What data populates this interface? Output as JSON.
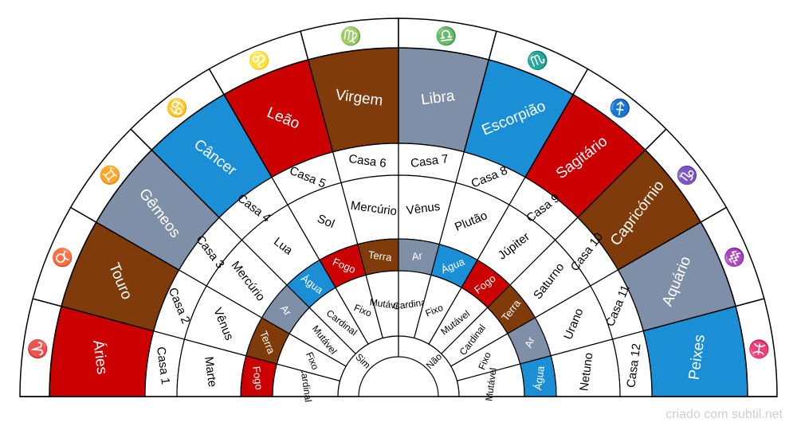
{
  "colors": {
    "Fogo": "#cc0000",
    "Terra": "#7f3b0a",
    "Ar": "#7f8fa8",
    "Água": "#1a8fd6",
    "plain": "#ffffff",
    "line": "#000000"
  },
  "segments": [
    {
      "sign": "Áries",
      "symbol": "♈",
      "house": "Casa 1",
      "planet": "Marte",
      "element": "Fogo",
      "elementKey": "Fogo",
      "quality": "Cardinal"
    },
    {
      "sign": "Touro",
      "symbol": "♉",
      "house": "Casa 2",
      "planet": "Vênus",
      "element": "Terra",
      "elementKey": "Terra",
      "quality": "Fixo"
    },
    {
      "sign": "Gêmeos",
      "symbol": "♊",
      "house": "Casa 3",
      "planet": "Mercúrio",
      "element": "Ar",
      "elementKey": "Ar",
      "quality": "Mutável"
    },
    {
      "sign": "Câncer",
      "symbol": "♋",
      "house": "Casa 4",
      "planet": "Lua",
      "element": "Água",
      "elementKey": "Água",
      "quality": "Cardinal"
    },
    {
      "sign": "Leão",
      "symbol": "♌",
      "house": "Casa 5",
      "planet": "Sol",
      "element": "Fogo",
      "elementKey": "Fogo",
      "quality": "Fixo"
    },
    {
      "sign": "Virgem",
      "symbol": "♍",
      "house": "Casa 6",
      "planet": "Mercúrio",
      "element": "Terra",
      "elementKey": "Terra",
      "quality": "Mutável"
    },
    {
      "sign": "Libra",
      "symbol": "♎",
      "house": "Casa 7",
      "planet": "Vênus",
      "element": "Ar",
      "elementKey": "Ar",
      "quality": "Cardinal"
    },
    {
      "sign": "Escorpião",
      "symbol": "♏",
      "house": "Casa 8",
      "planet": "Plutão",
      "element": "Água",
      "elementKey": "Água",
      "quality": "Fixo"
    },
    {
      "sign": "Sagitário",
      "symbol": "♐",
      "house": "Casa 9",
      "planet": "Júpiter",
      "element": "Fogo",
      "elementKey": "Fogo",
      "quality": "Mutável"
    },
    {
      "sign": "Capricórnio",
      "symbol": "♑",
      "house": "Casa 10",
      "planet": "Saturno",
      "element": "Terra",
      "elementKey": "Terra",
      "quality": "Cardinal"
    },
    {
      "sign": "Aquário",
      "symbol": "♒",
      "house": "Casa 11",
      "planet": "Urano",
      "element": "Ar",
      "elementKey": "Ar",
      "quality": "Fixo"
    },
    {
      "sign": "Peixes",
      "symbol": "♓",
      "house": "Casa 12",
      "planet": "Netuno",
      "element": "Água",
      "elementKey": "Água",
      "quality": "Mutável"
    }
  ],
  "polarity": [
    "Sim",
    "Não"
  ],
  "credit": "criado com subtil.net"
}
